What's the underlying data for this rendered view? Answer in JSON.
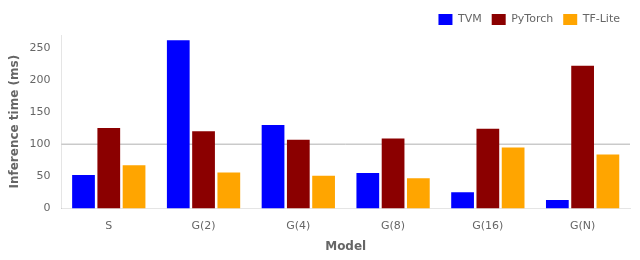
{
  "chart_data": {
    "type": "bar",
    "x_label": "Model",
    "y_label": "Inference time (ms)",
    "categories": [
      "S",
      "G(2)",
      "G(4)",
      "G(8)",
      "G(16)",
      "G(N)"
    ],
    "series": [
      {
        "name": "TVM",
        "color": "#0000ff",
        "values": [
          52,
          262,
          130,
          55,
          25,
          13
        ]
      },
      {
        "name": "PyTorch",
        "color": "#8b0000",
        "values": [
          125,
          120,
          107,
          109,
          124,
          222
        ]
      },
      {
        "name": "TF-Lite",
        "color": "#ffa500",
        "values": [
          67,
          56,
          51,
          47,
          95,
          84
        ]
      }
    ],
    "reference_lines": [
      {
        "y": 100,
        "color": "#b0b0b0"
      }
    ],
    "ylim": [
      0,
      270
    ],
    "yticks": [
      0,
      50,
      100,
      150,
      200,
      250
    ],
    "grid": false,
    "legend": "upper right"
  }
}
